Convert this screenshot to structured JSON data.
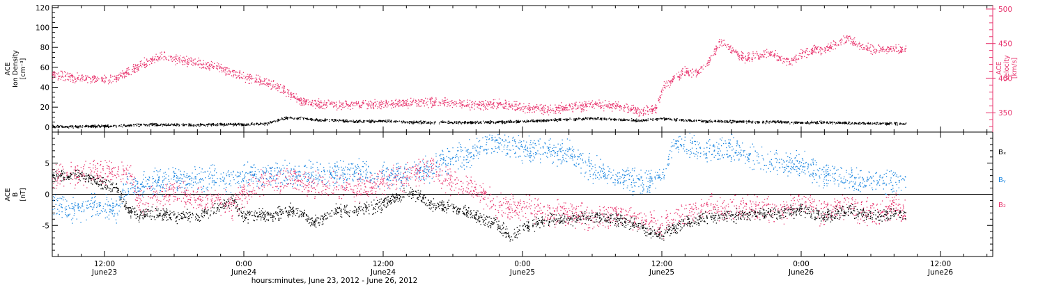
{
  "colors": {
    "density": "#000000",
    "velocity": "#e8336d",
    "bx": "#000000",
    "by": "#1a86e0",
    "bz": "#e8336d",
    "axis": "#000000"
  },
  "xaxis": {
    "title": "hours:minutes, June 23, 2012 - June 26, 2012",
    "ticks": [
      {
        "hours": 12,
        "time": "12:00",
        "date": "June23"
      },
      {
        "hours": 24,
        "time": "0:00",
        "date": "June24"
      },
      {
        "hours": 36,
        "time": "12:00",
        "date": "June24"
      },
      {
        "hours": 48,
        "time": "0:00",
        "date": "June25"
      },
      {
        "hours": 60,
        "time": "12:00",
        "date": "June25"
      },
      {
        "hours": 72,
        "time": "0:00",
        "date": "June26"
      },
      {
        "hours": 84,
        "time": "12:00",
        "date": "June26"
      }
    ],
    "range_hours": [
      7.5,
      88.5
    ]
  },
  "chart_data": [
    {
      "type": "scatter",
      "panel": "top",
      "ylabel_left": [
        "ACE",
        "Ion Density",
        "[cm⁻³]"
      ],
      "ylabel_right": [
        "ACE",
        "Velocity",
        "[km/s]"
      ],
      "left_ylim": [
        -5,
        122
      ],
      "left_ticks": [
        "0",
        "20",
        "40",
        "60",
        "80",
        "100",
        "120"
      ],
      "right_ylim": [
        322,
        505
      ],
      "right_ticks": [
        "350",
        "400",
        "450",
        "500"
      ],
      "series": [
        {
          "key": "density",
          "axis": "left",
          "x": [
            7.5,
            10,
            12,
            14,
            16,
            18,
            20,
            22,
            24,
            26,
            27,
            28,
            30,
            32,
            34,
            36,
            38,
            40,
            42,
            44,
            46,
            48,
            50,
            52,
            54,
            56,
            58,
            60,
            62,
            64,
            66,
            68,
            70,
            72,
            74,
            76,
            78,
            80,
            81
          ],
          "values": [
            1,
            1,
            1.5,
            2,
            3,
            2.5,
            2.5,
            3,
            3,
            4,
            8,
            10,
            8,
            7,
            6,
            6.5,
            5.5,
            5,
            5,
            5,
            5.5,
            6,
            7,
            8,
            9,
            8,
            7,
            9,
            7,
            6,
            6,
            5.5,
            5.5,
            5,
            5,
            4.5,
            4,
            4,
            3.5
          ]
        },
        {
          "key": "velocity",
          "axis": "right",
          "x": [
            7.5,
            9,
            11,
            13,
            14,
            15,
            16,
            17,
            18,
            19,
            20,
            21,
            22,
            23,
            24,
            25,
            26,
            27,
            28,
            29,
            30,
            32,
            34,
            36,
            38,
            40,
            42,
            44,
            46,
            48,
            50,
            52,
            54,
            56,
            58,
            59.5,
            60,
            61,
            62,
            63,
            64,
            65,
            66,
            67,
            68,
            69,
            70,
            71,
            72,
            73,
            74,
            75,
            76,
            77,
            78,
            79,
            80,
            81
          ],
          "values": [
            405,
            402,
            398,
            400,
            410,
            418,
            428,
            433,
            428,
            425,
            423,
            418,
            415,
            408,
            403,
            398,
            393,
            387,
            377,
            367,
            363,
            362,
            362,
            363,
            365,
            366,
            364,
            362,
            363,
            358,
            355,
            358,
            362,
            360,
            353,
            355,
            385,
            400,
            410,
            408,
            425,
            455,
            440,
            430,
            432,
            438,
            432,
            422,
            435,
            440,
            443,
            450,
            458,
            447,
            443,
            442,
            445,
            440
          ]
        }
      ]
    },
    {
      "type": "scatter",
      "panel": "bottom",
      "ylabel_left": [
        "ACE",
        "B",
        "[nT]"
      ],
      "ylim": [
        -10,
        10
      ],
      "ticks": [
        "-5",
        "0",
        "5"
      ],
      "legend": [
        "Bₓ",
        "Bᵧ",
        "B₂"
      ],
      "legend_position": "right",
      "series": [
        {
          "key": "bx",
          "x": [
            7.5,
            10,
            11,
            12,
            13,
            14,
            15,
            16,
            18,
            20,
            22,
            23,
            24,
            25,
            26,
            28,
            29,
            30,
            32,
            34,
            36,
            37,
            38,
            39,
            40,
            42,
            44,
            46,
            47,
            48,
            50,
            52,
            54,
            56,
            58,
            59,
            60,
            62,
            64,
            66,
            68,
            70,
            72,
            74,
            76,
            78,
            80,
            81
          ],
          "values": [
            3,
            3,
            2.5,
            1.5,
            1,
            -2.5,
            -3.2,
            -3,
            -3.5,
            -3.5,
            -2,
            -1,
            -3.5,
            -3,
            -3.5,
            -2.5,
            -3,
            -4.5,
            -2.5,
            -2.5,
            -1.5,
            -0.5,
            0,
            0,
            -1.5,
            -2,
            -3.5,
            -5,
            -7,
            -5.5,
            -4,
            -4,
            -3.5,
            -4,
            -5,
            -6,
            -6.5,
            -4.5,
            -3.5,
            -3.5,
            -3,
            -3,
            -2.5,
            -3.5,
            -2.5,
            -3.5,
            -3,
            -3.5
          ]
        },
        {
          "key": "by",
          "x": [
            7.5,
            9,
            10,
            11,
            12,
            13,
            14,
            15,
            16,
            18,
            20,
            22,
            24,
            26,
            28,
            30,
            32,
            34,
            36,
            38,
            40,
            42,
            44,
            45,
            46,
            47,
            48,
            49,
            50,
            52,
            54,
            56,
            58,
            60,
            61,
            62,
            64,
            66,
            68,
            70,
            72,
            74,
            76,
            78,
            80,
            81
          ],
          "values": [
            -1.5,
            -2.5,
            -2,
            -1.5,
            -2,
            -2.5,
            1.5,
            1,
            2,
            2.5,
            2.5,
            2.5,
            3,
            3,
            3.2,
            3.5,
            3.5,
            3.5,
            3,
            3,
            4,
            6,
            7,
            8,
            8.2,
            8,
            7,
            7.5,
            7,
            6.5,
            4,
            3,
            2,
            2.5,
            8.5,
            8,
            7,
            7.5,
            6,
            5,
            5,
            3,
            2.5,
            2,
            2.5,
            2
          ]
        },
        {
          "key": "bz",
          "x": [
            7.5,
            9,
            10,
            12,
            13,
            14,
            15,
            16,
            18,
            20,
            22,
            23,
            24,
            25,
            26,
            28,
            30,
            32,
            34,
            36,
            38,
            40,
            42,
            44,
            46,
            48,
            50,
            52,
            54,
            56,
            58,
            60,
            62,
            64,
            66,
            68,
            70,
            72,
            74,
            76,
            78,
            80,
            81
          ],
          "values": [
            3,
            3.5,
            3.5,
            3.5,
            4,
            3.5,
            -1.5,
            -0.5,
            0.5,
            -0.5,
            -1,
            -2,
            0,
            1.5,
            2,
            2.5,
            1.5,
            1.5,
            1,
            2,
            3,
            4,
            2,
            1,
            -2,
            -2,
            -3,
            -3,
            -4,
            -3,
            -4,
            -5,
            -3,
            -2,
            -2,
            -2,
            -3,
            -1,
            -3,
            -2,
            -3,
            -2,
            -3
          ]
        }
      ]
    }
  ]
}
